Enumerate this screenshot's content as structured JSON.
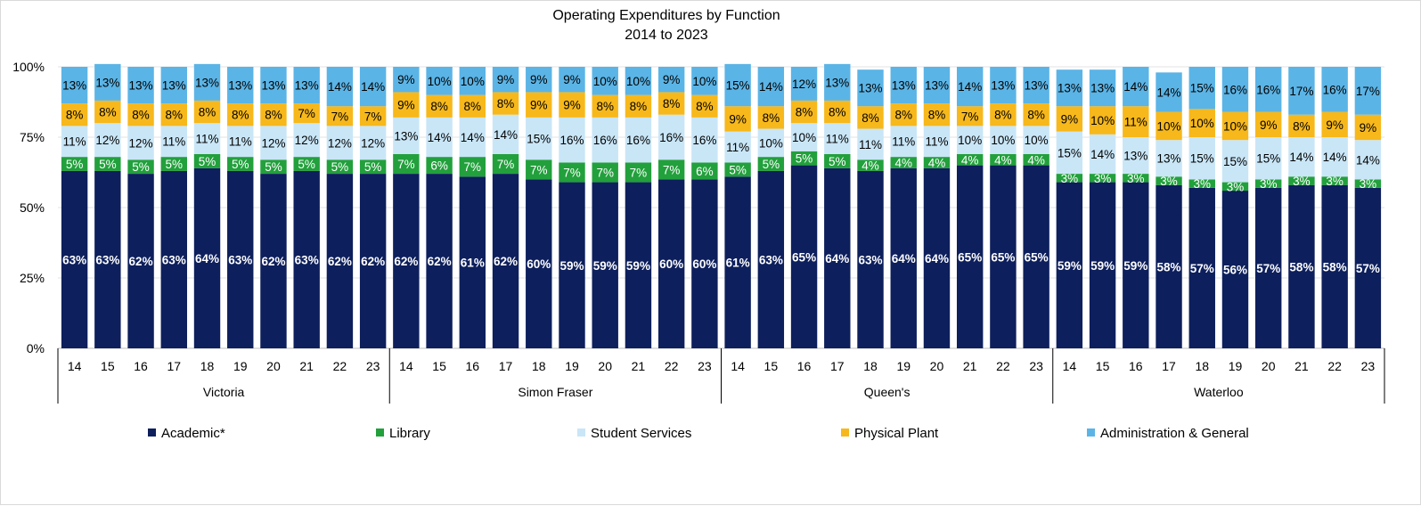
{
  "chart_data": {
    "type": "bar",
    "stacked": true,
    "percent": true,
    "title": "Operating Expenditures by Function",
    "subtitle": "2014 to 2023",
    "ylim": [
      0,
      100
    ],
    "yticks": [
      "0%",
      "25%",
      "50%",
      "75%",
      "100%"
    ],
    "grid": true,
    "legend_position": "bottom",
    "categories": [
      "14",
      "15",
      "16",
      "17",
      "18",
      "19",
      "20",
      "21",
      "22",
      "23"
    ],
    "groups": [
      {
        "name": "Victoria",
        "series": [
          {
            "name": "Academic*",
            "values": [
              63,
              63,
              62,
              63,
              64,
              63,
              62,
              63,
              62,
              62
            ]
          },
          {
            "name": "Library",
            "values": [
              5,
              5,
              5,
              5,
              5,
              5,
              5,
              5,
              5,
              5
            ]
          },
          {
            "name": "Student Services",
            "values": [
              11,
              12,
              12,
              11,
              11,
              11,
              12,
              12,
              12,
              12
            ]
          },
          {
            "name": "Physical Plant",
            "values": [
              8,
              8,
              8,
              8,
              8,
              8,
              8,
              7,
              7,
              7
            ]
          },
          {
            "name": "Administration & General",
            "values": [
              13,
              13,
              13,
              13,
              13,
              13,
              13,
              13,
              14,
              14
            ]
          }
        ]
      },
      {
        "name": "Simon Fraser",
        "series": [
          {
            "name": "Academic*",
            "values": [
              62,
              62,
              61,
              62,
              60,
              59,
              59,
              59,
              60,
              60
            ]
          },
          {
            "name": "Library",
            "values": [
              7,
              6,
              7,
              7,
              7,
              7,
              7,
              7,
              7,
              6
            ]
          },
          {
            "name": "Student Services",
            "values": [
              13,
              14,
              14,
              14,
              15,
              16,
              16,
              16,
              16,
              16
            ]
          },
          {
            "name": "Physical Plant",
            "values": [
              9,
              8,
              8,
              8,
              9,
              9,
              8,
              8,
              8,
              8
            ]
          },
          {
            "name": "Administration & General",
            "values": [
              9,
              10,
              10,
              9,
              9,
              9,
              10,
              10,
              9,
              10
            ]
          }
        ]
      },
      {
        "name": "Queen's",
        "series": [
          {
            "name": "Academic*",
            "values": [
              61,
              63,
              65,
              64,
              63,
              64,
              64,
              65,
              65,
              65
            ]
          },
          {
            "name": "Library",
            "values": [
              5,
              5,
              5,
              5,
              4,
              4,
              4,
              4,
              4,
              4
            ]
          },
          {
            "name": "Student Services",
            "values": [
              11,
              10,
              10,
              11,
              11,
              11,
              11,
              10,
              10,
              10
            ]
          },
          {
            "name": "Physical Plant",
            "values": [
              9,
              8,
              8,
              8,
              8,
              8,
              8,
              7,
              8,
              8
            ]
          },
          {
            "name": "Administration & General",
            "values": [
              15,
              14,
              12,
              13,
              13,
              13,
              13,
              14,
              13,
              13
            ]
          }
        ]
      },
      {
        "name": "Waterloo",
        "series": [
          {
            "name": "Academic*",
            "values": [
              59,
              59,
              59,
              58,
              57,
              56,
              57,
              58,
              58,
              57
            ]
          },
          {
            "name": "Library",
            "values": [
              3,
              3,
              3,
              3,
              3,
              3,
              3,
              3,
              3,
              3
            ]
          },
          {
            "name": "Student Services",
            "values": [
              15,
              14,
              13,
              13,
              15,
              15,
              15,
              14,
              14,
              14
            ]
          },
          {
            "name": "Physical Plant",
            "values": [
              9,
              10,
              11,
              10,
              10,
              10,
              9,
              8,
              9,
              9
            ]
          },
          {
            "name": "Administration & General",
            "values": [
              13,
              13,
              14,
              14,
              15,
              16,
              16,
              17,
              16,
              17
            ]
          }
        ]
      }
    ],
    "legend": [
      {
        "name": "Academic*",
        "color": "#0d1f5c"
      },
      {
        "name": "Library",
        "color": "#22a03c"
      },
      {
        "name": "Student Services",
        "color": "#c9e6f7"
      },
      {
        "name": "Physical Plant",
        "color": "#f7b81b"
      },
      {
        "name": "Administration & General",
        "color": "#5bb4e6"
      }
    ],
    "label_colors": [
      "#ffffff",
      "#ffffff",
      "#000000",
      "#000000",
      "#000000"
    ]
  }
}
